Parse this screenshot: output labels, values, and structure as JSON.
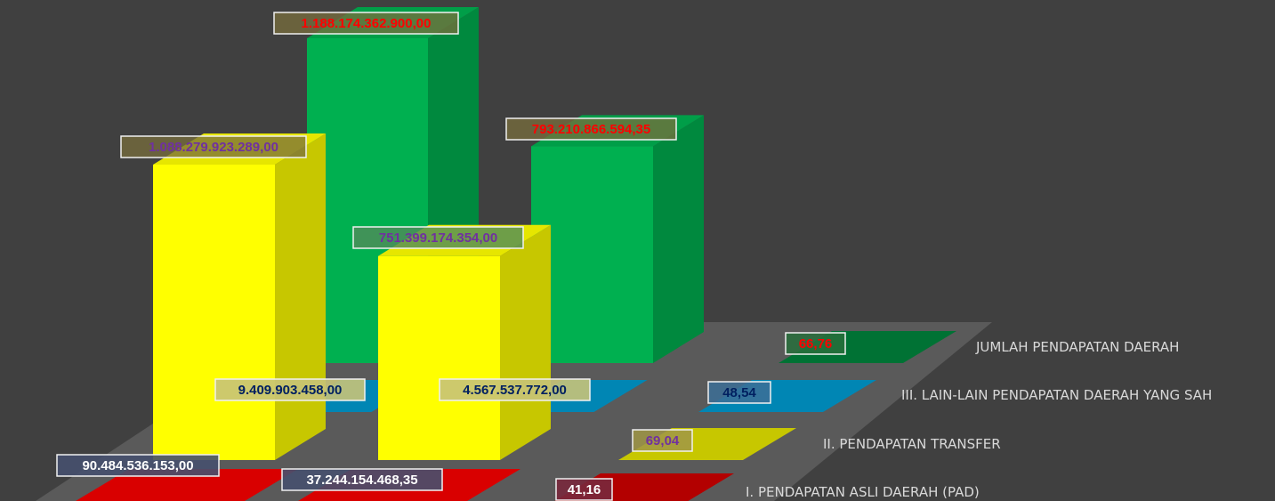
{
  "chart_data": {
    "type": "bar",
    "subtype": "3d-column-depth",
    "depth_rows": [
      {
        "label": "JUMLAH PENDAPATAN DAERAH",
        "color": "#00b050",
        "values": [
          "1.188.174.362.900,00",
          "793.210.866.594,35",
          "66,76"
        ],
        "label_text_color": "#ff0000"
      },
      {
        "label": "III.   LAIN-LAIN PENDAPATAN DAERAH YANG SAH",
        "color": "#0095c8",
        "values": [
          "9.409.903.458,00",
          "4.567.537.772,00",
          "48,54"
        ],
        "label_text_color": "#002060"
      },
      {
        "label": "II.   PENDAPATAN TRANSFER",
        "color": "#ffff00",
        "values": [
          "1.088.279.923.289,00",
          "751.399.174.354,00",
          "69,04"
        ],
        "label_text_color": "#7030a0"
      },
      {
        "label": "I.   PENDAPATAN ASLI DAERAH (PAD)",
        "color": "#ff0000",
        "values": [
          "90.484.536.153,00",
          "37.244.154.468,35",
          "41,16"
        ],
        "label_text_color": "#ffffff"
      }
    ],
    "numeric_values": [
      [
        1188174362900.0,
        793210866594.35,
        66.76
      ],
      [
        9409903458.0,
        4567537772.0,
        48.54
      ],
      [
        1088279923289.0,
        751399174354.0,
        69.04
      ],
      [
        90484536153.0,
        37244154468.35,
        41.16
      ]
    ],
    "legend": "none",
    "grid": false
  }
}
